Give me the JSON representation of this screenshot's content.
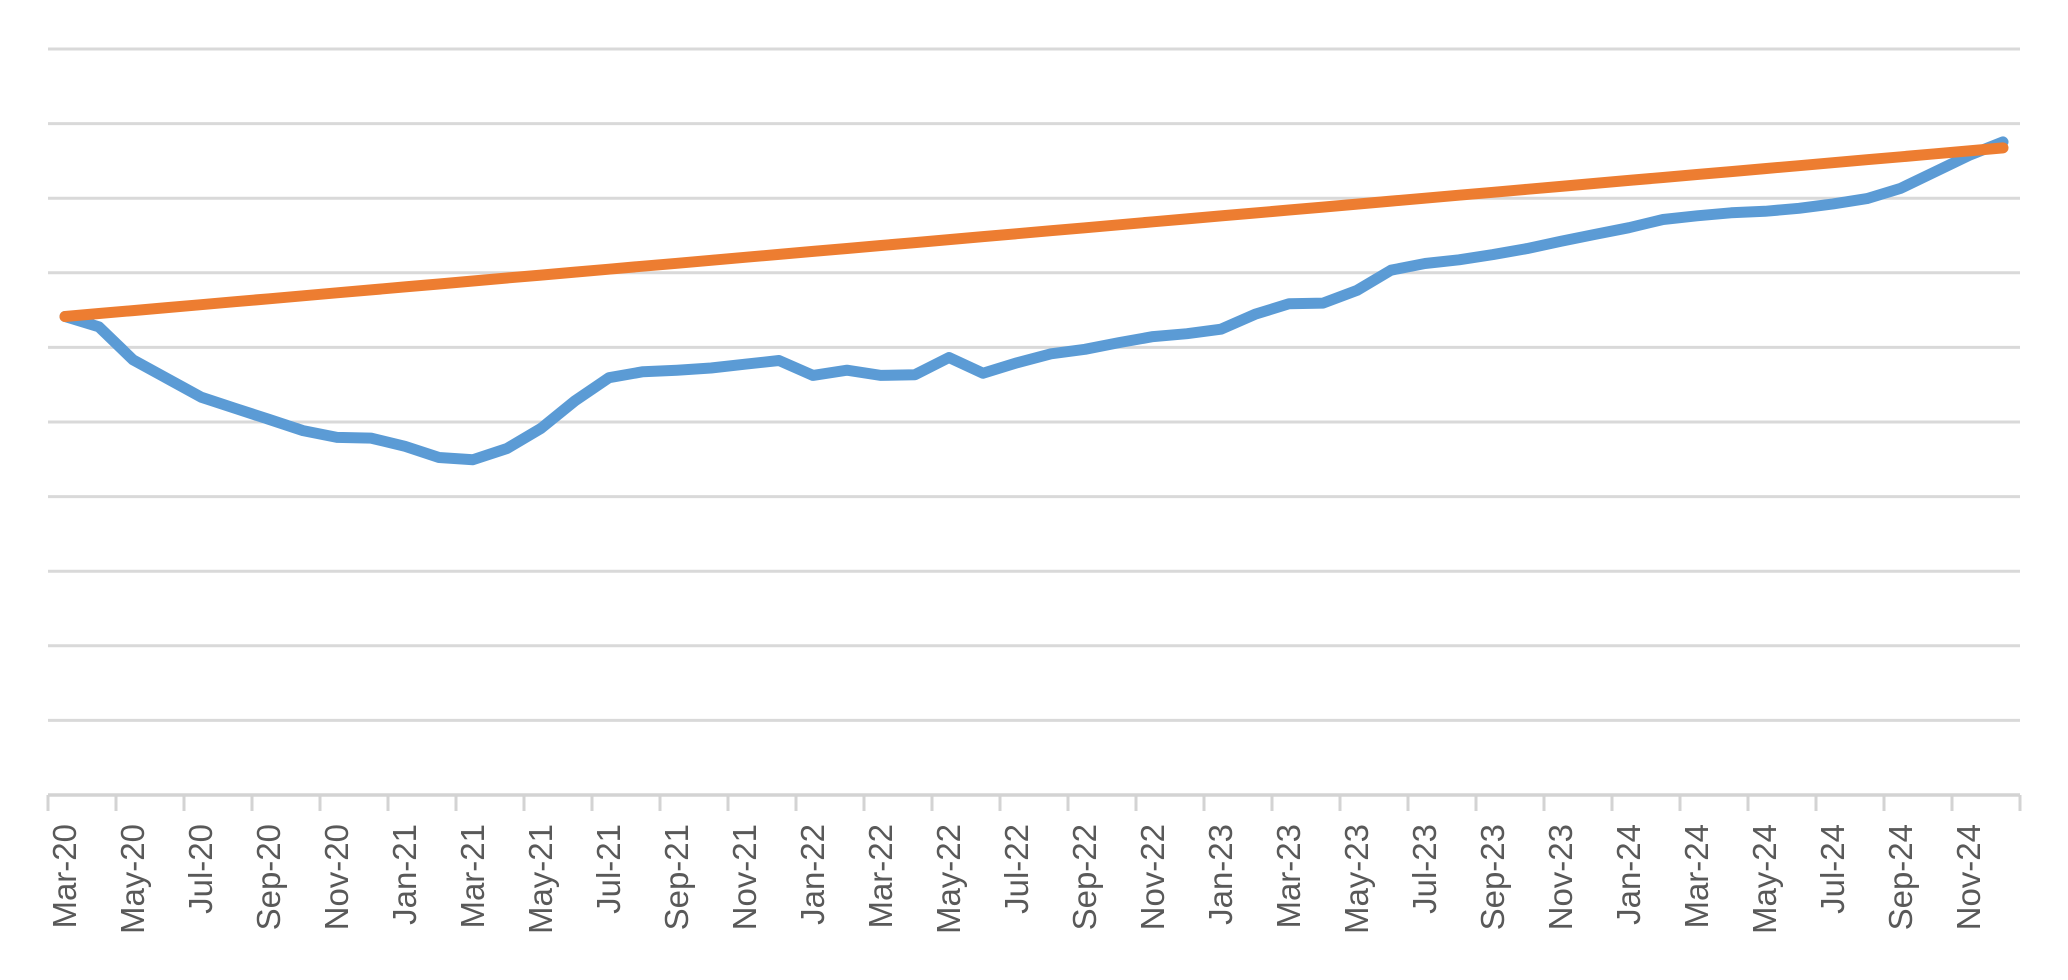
{
  "chart_data": {
    "type": "line",
    "title": "",
    "xlabel": "",
    "ylabel": "",
    "legend": "none",
    "grid": "horizontal",
    "background_color": "#ffffff",
    "gridline_color": "#d9d9d9",
    "axis_line_color": "#d3d3d3",
    "tick_label_color": "#595959",
    "x_tick_label_rotation_degrees": -90,
    "x_labels_shown_every_n_months": 2,
    "categories": [
      "Mar-20",
      "Apr-20",
      "May-20",
      "Jun-20",
      "Jul-20",
      "Aug-20",
      "Sep-20",
      "Oct-20",
      "Nov-20",
      "Dec-20",
      "Jan-21",
      "Feb-21",
      "Mar-21",
      "Apr-21",
      "May-21",
      "Jun-21",
      "Jul-21",
      "Aug-21",
      "Sep-21",
      "Oct-21",
      "Nov-21",
      "Dec-21",
      "Jan-22",
      "Feb-22",
      "Mar-22",
      "Apr-22",
      "May-22",
      "Jun-22",
      "Jul-22",
      "Aug-22",
      "Sep-22",
      "Oct-22",
      "Nov-22",
      "Dec-22",
      "Jan-23",
      "Feb-23",
      "Mar-23",
      "Apr-23",
      "May-23",
      "Jun-23",
      "Jul-23",
      "Aug-23",
      "Sep-23",
      "Oct-23",
      "Nov-23",
      "Dec-23",
      "Jan-24",
      "Feb-24",
      "Mar-24",
      "Apr-24",
      "May-24",
      "Jun-24",
      "Jul-24",
      "Aug-24",
      "Sep-24",
      "Oct-24",
      "Nov-24",
      "Dec-24"
    ],
    "y_axis": {
      "labels_visible": false,
      "unit": "index (Mar-20 = 100, estimated; no axis labels shown)",
      "ylim": [
        93.59,
        104.25
      ],
      "gridline_interval": 1.0,
      "gridline_count": 11
    },
    "series": [
      {
        "name": "series-1-actual",
        "color": "#5b9bd5",
        "values": [
          100.0,
          99.86,
          99.42,
          99.17,
          98.92,
          98.77,
          98.62,
          98.47,
          98.38,
          98.37,
          98.26,
          98.11,
          98.08,
          98.23,
          98.5,
          98.87,
          99.18,
          99.26,
          99.28,
          99.31,
          99.36,
          99.41,
          99.21,
          99.28,
          99.21,
          99.22,
          99.45,
          99.24,
          99.38,
          99.5,
          99.56,
          99.65,
          99.73,
          99.77,
          99.83,
          100.03,
          100.17,
          100.18,
          100.35,
          100.62,
          100.71,
          100.76,
          100.83,
          100.91,
          101.01,
          101.1,
          101.19,
          101.3,
          101.35,
          101.39,
          101.41,
          101.45,
          101.51,
          101.58,
          101.72,
          101.94,
          102.16,
          102.34
        ]
      },
      {
        "name": "series-2-linear-trend",
        "color": "#ed7d31",
        "interpolation": "linear",
        "start": 100.0,
        "end": 102.26
      }
    ]
  }
}
